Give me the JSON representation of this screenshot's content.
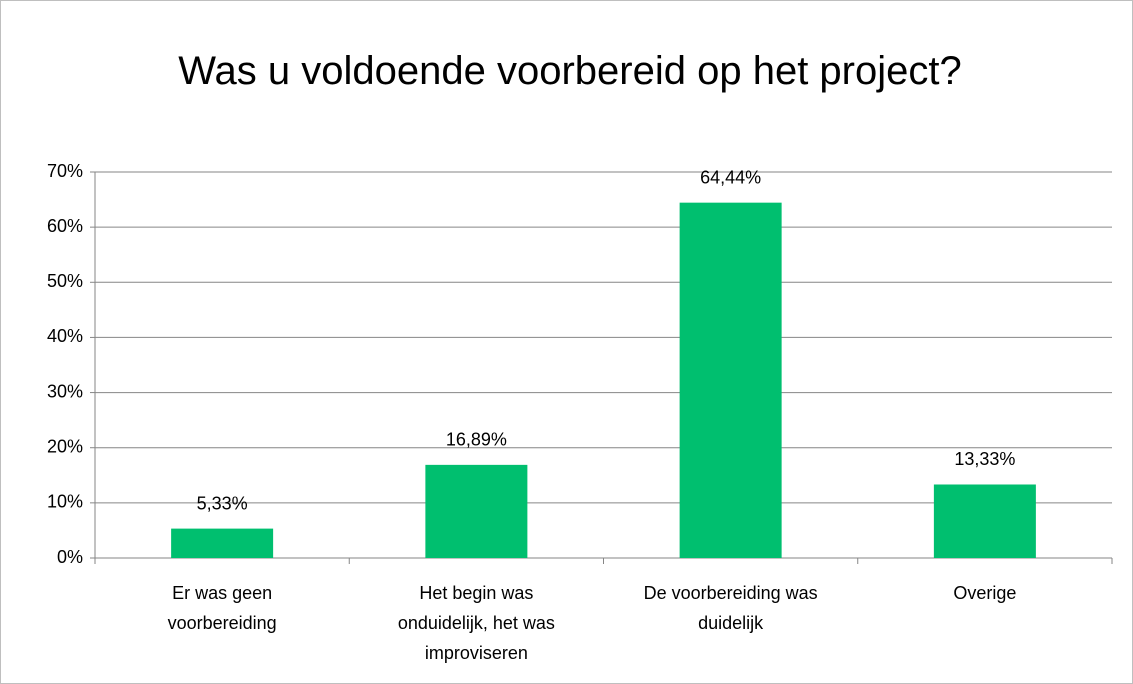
{
  "chart_data": {
    "type": "bar",
    "title": "Was u voldoende voorbereid op het project?",
    "categories": [
      "Er was geen voorbereiding",
      "Het begin was onduidelijk, het was improviseren",
      "De voorbereiding was duidelijk",
      "Overige"
    ],
    "values": [
      5.33,
      16.89,
      64.44,
      13.33
    ],
    "value_labels": [
      "5,33%",
      "16,89%",
      "64,44%",
      "13,33%"
    ],
    "color": "#00bf6f",
    "ylim": [
      0,
      70
    ],
    "yticks": [
      {
        "value": 0,
        "label": "0%"
      },
      {
        "value": 10,
        "label": "10%"
      },
      {
        "value": 20,
        "label": "20%"
      },
      {
        "value": 30,
        "label": "30%"
      },
      {
        "value": 40,
        "label": "40%"
      },
      {
        "value": 50,
        "label": "50%"
      },
      {
        "value": 60,
        "label": "60%"
      },
      {
        "value": 70,
        "label": "70%"
      }
    ],
    "grid": true
  }
}
